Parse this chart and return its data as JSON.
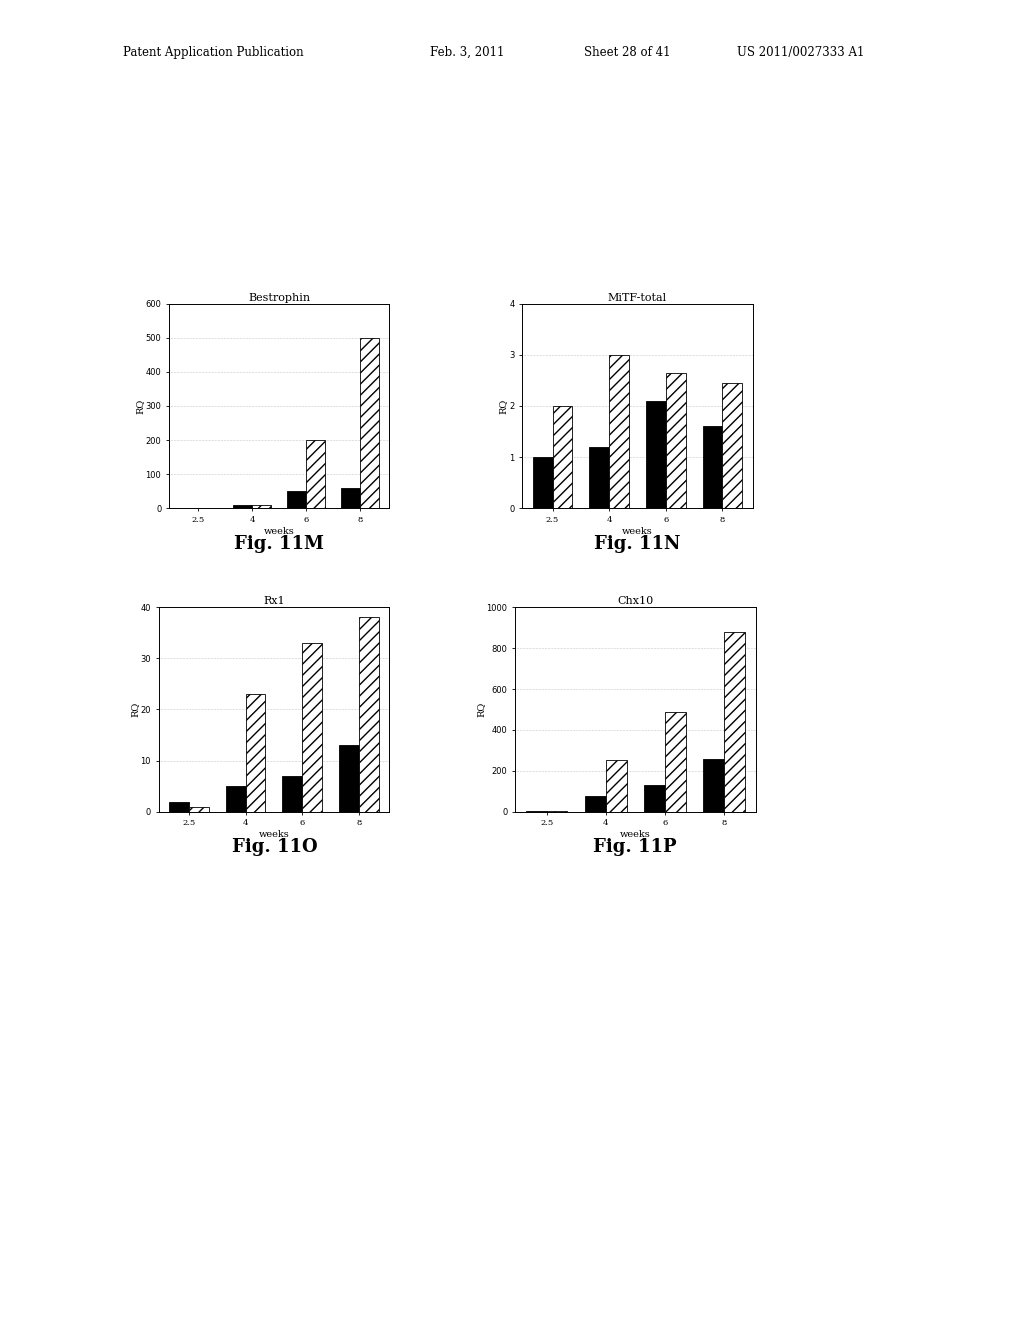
{
  "page_header_left": "Patent Application Publication",
  "page_header_mid": "Feb. 3, 2011",
  "page_header_mid2": "Sheet 28 of 41",
  "page_header_right": "US 2011/0027333 A1",
  "charts": [
    {
      "title": "Bestrophin",
      "fig_label": "Fig. 11M",
      "xlabel": "weeks",
      "ylabel": "RQ",
      "ylim": [
        0,
        600
      ],
      "yticks": [
        0,
        100,
        200,
        300,
        400,
        500,
        600
      ],
      "x_categories": [
        "2.5",
        "4",
        "6",
        "8"
      ],
      "series": [
        {
          "values": [
            2,
            8,
            50,
            60
          ],
          "style": "solid"
        },
        {
          "values": [
            0,
            10,
            200,
            500
          ],
          "style": "hatch"
        }
      ]
    },
    {
      "title": "MiTF-total",
      "fig_label": "Fig. 11N",
      "xlabel": "weeks",
      "ylabel": "RQ",
      "ylim": [
        0,
        4
      ],
      "yticks": [
        0,
        1,
        2,
        3,
        4
      ],
      "x_categories": [
        "2.5",
        "4",
        "6",
        "8"
      ],
      "series": [
        {
          "values": [
            1.0,
            1.2,
            2.1,
            1.6
          ],
          "style": "solid"
        },
        {
          "values": [
            2.0,
            3.0,
            2.65,
            2.45
          ],
          "style": "hatch"
        }
      ]
    },
    {
      "title": "Rx1",
      "fig_label": "Fig. 11O",
      "xlabel": "weeks",
      "ylabel": "RQ",
      "ylim": [
        0,
        40
      ],
      "yticks": [
        0,
        10,
        20,
        30,
        40
      ],
      "x_categories": [
        "2.5",
        "4",
        "6",
        "8"
      ],
      "series": [
        {
          "values": [
            2,
            5,
            7,
            13
          ],
          "style": "solid"
        },
        {
          "values": [
            1,
            23,
            33,
            38
          ],
          "style": "hatch"
        }
      ]
    },
    {
      "title": "Chx10",
      "fig_label": "Fig. 11P",
      "xlabel": "weeks",
      "ylabel": "RQ",
      "ylim": [
        0,
        1000
      ],
      "yticks": [
        0,
        200,
        400,
        600,
        800,
        1000
      ],
      "x_categories": [
        "2.5",
        "4",
        "6",
        "8"
      ],
      "series": [
        {
          "values": [
            5,
            75,
            130,
            260
          ],
          "style": "solid"
        },
        {
          "values": [
            3,
            255,
            490,
            880
          ],
          "style": "hatch"
        }
      ]
    }
  ],
  "background_color": "#ffffff",
  "font_color": "#000000"
}
